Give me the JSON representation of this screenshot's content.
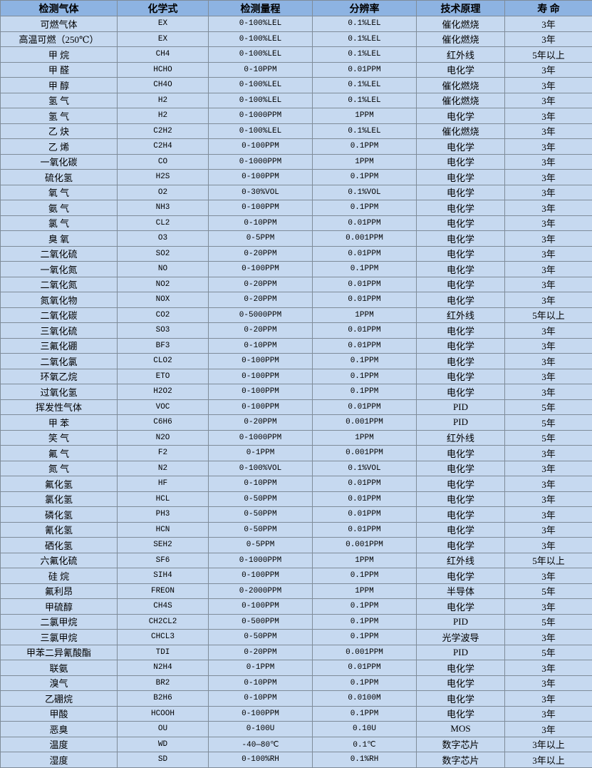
{
  "headers": [
    "检测气体",
    "化学式",
    "检测量程",
    "分辨率",
    "技术原理",
    "寿 命"
  ],
  "rows": [
    [
      "可燃气体",
      "EX",
      "0-100%LEL",
      "0.1%LEL",
      "催化燃烧",
      "3年"
    ],
    [
      "高温可燃（250℃）",
      "EX",
      "0-100%LEL",
      "0.1%LEL",
      "催化燃烧",
      "3年"
    ],
    [
      "甲 烷",
      "CH4",
      "0-100%LEL",
      "0.1%LEL",
      "红外线",
      "5年以上"
    ],
    [
      "甲 醛",
      "HCHO",
      "0-10PPM",
      "0.01PPM",
      "电化学",
      "3年"
    ],
    [
      "甲 醇",
      "CH4O",
      "0-100%LEL",
      "0.1%LEL",
      "催化燃烧",
      "3年"
    ],
    [
      "氢 气",
      "H2",
      "0-100%LEL",
      "0.1%LEL",
      "催化燃烧",
      "3年"
    ],
    [
      "氢 气",
      "H2",
      "0-1000PPM",
      "1PPM",
      "电化学",
      "3年"
    ],
    [
      "乙 炔",
      "C2H2",
      "0-100%LEL",
      "0.1%LEL",
      "催化燃烧",
      "3年"
    ],
    [
      "乙 烯",
      "C2H4",
      "0-100PPM",
      "0.1PPM",
      "电化学",
      "3年"
    ],
    [
      "一氧化碳",
      "CO",
      "0-1000PPM",
      "1PPM",
      "电化学",
      "3年"
    ],
    [
      "硫化氢",
      "H2S",
      "0-100PPM",
      "0.1PPM",
      "电化学",
      "3年"
    ],
    [
      "氧 气",
      "O2",
      "0-30%VOL",
      "0.1%VOL",
      "电化学",
      "3年"
    ],
    [
      "氨 气",
      "NH3",
      "0-100PPM",
      "0.1PPM",
      "电化学",
      "3年"
    ],
    [
      "氯 气",
      "CL2",
      "0-10PPM",
      "0.01PPM",
      "电化学",
      "3年"
    ],
    [
      "臭 氧",
      "O3",
      "0-5PPM",
      "0.001PPM",
      "电化学",
      "3年"
    ],
    [
      "二氧化硫",
      "SO2",
      "0-20PPM",
      "0.01PPM",
      "电化学",
      "3年"
    ],
    [
      "一氧化氮",
      "NO",
      "0-100PPM",
      "0.1PPM",
      "电化学",
      "3年"
    ],
    [
      "二氧化氮",
      "NO2",
      "0-20PPM",
      "0.01PPM",
      "电化学",
      "3年"
    ],
    [
      "氮氧化物",
      "NOX",
      "0-20PPM",
      "0.01PPM",
      "电化学",
      "3年"
    ],
    [
      "二氧化碳",
      "CO2",
      "0-5000PPM",
      "1PPM",
      "红外线",
      "5年以上"
    ],
    [
      "三氧化硫",
      "SO3",
      "0-20PPM",
      "0.01PPM",
      "电化学",
      "3年"
    ],
    [
      "三氟化硼",
      "BF3",
      "0-10PPM",
      "0.01PPM",
      "电化学",
      "3年"
    ],
    [
      "二氧化氯",
      "CLO2",
      "0-100PPM",
      "0.1PPM",
      "电化学",
      "3年"
    ],
    [
      "环氧乙烷",
      "ETO",
      "0-100PPM",
      "0.1PPM",
      "电化学",
      "3年"
    ],
    [
      "过氧化氢",
      "H2O2",
      "0-100PPM",
      "0.1PPM",
      "电化学",
      "3年"
    ],
    [
      "挥发性气体",
      "VOC",
      "0-100PPM",
      "0.01PPM",
      "PID",
      "5年"
    ],
    [
      "甲 苯",
      "C6H6",
      "0-20PPM",
      "0.001PPM",
      "PID",
      "5年"
    ],
    [
      "笑 气",
      "N2O",
      "0-1000PPM",
      "1PPM",
      "红外线",
      "5年"
    ],
    [
      "氟 气",
      "F2",
      "0-1PPM",
      "0.001PPM",
      "电化学",
      "3年"
    ],
    [
      "氮 气",
      "N2",
      "0-100%VOL",
      "0.1%VOL",
      "电化学",
      "3年"
    ],
    [
      "氟化氢",
      "HF",
      "0-10PPM",
      "0.01PPM",
      "电化学",
      "3年"
    ],
    [
      "氯化氢",
      "HCL",
      "0-50PPM",
      "0.01PPM",
      "电化学",
      "3年"
    ],
    [
      "磷化氢",
      "PH3",
      "0-50PPM",
      "0.01PPM",
      "电化学",
      "3年"
    ],
    [
      "氰化氢",
      "HCN",
      "0-50PPM",
      "0.01PPM",
      "电化学",
      "3年"
    ],
    [
      "硒化氢",
      "SEH2",
      "0-5PPM",
      "0.001PPM",
      "电化学",
      "3年"
    ],
    [
      "六氟化硫",
      "SF6",
      "0-1000PPM",
      "1PPM",
      "红外线",
      "5年以上"
    ],
    [
      "硅 烷",
      "SIH4",
      "0-100PPM",
      "0.1PPM",
      "电化学",
      "3年"
    ],
    [
      "氟利昂",
      "FREON",
      "0-2000PPM",
      "1PPM",
      "半导体",
      "5年"
    ],
    [
      "甲硫醇",
      "CH4S",
      "0-100PPM",
      "0.1PPM",
      "电化学",
      "3年"
    ],
    [
      "二氯甲烷",
      "CH2CL2",
      "0-500PPM",
      "0.1PPM",
      "PID",
      "5年"
    ],
    [
      "三氯甲烷",
      "CHCL3",
      "0-50PPM",
      "0.1PPM",
      "光学波导",
      "3年"
    ],
    [
      "甲苯二异氰酸酯",
      "TDI",
      "0-20PPM",
      "0.001PPM",
      "PID",
      "5年"
    ],
    [
      "联氨",
      "N2H4",
      "0-1PPM",
      "0.01PPM",
      "电化学",
      "3年"
    ],
    [
      "溴气",
      "BR2",
      "0-10PPM",
      "0.1PPM",
      "电化学",
      "3年"
    ],
    [
      "乙硼烷",
      "B2H6",
      "0-10PPM",
      "0.0100M",
      "电化学",
      "3年"
    ],
    [
      "甲酸",
      "HCOOH",
      "0-100PPM",
      "0.1PPM",
      "电化学",
      "3年"
    ],
    [
      "恶臭",
      "OU",
      "0-100U",
      "0.10U",
      "MOS",
      "3年"
    ],
    [
      "温度",
      "WD",
      "-40—80℃",
      "0.1℃",
      "数字芯片",
      "3年以上"
    ],
    [
      "湿度",
      "SD",
      "0-100%RH",
      "0.1%RH",
      "数字芯片",
      "3年以上"
    ]
  ],
  "colors": {
    "header_bg": "#8db3e2",
    "row_bg": "#c6d9f0",
    "border": "#7f8c99"
  }
}
